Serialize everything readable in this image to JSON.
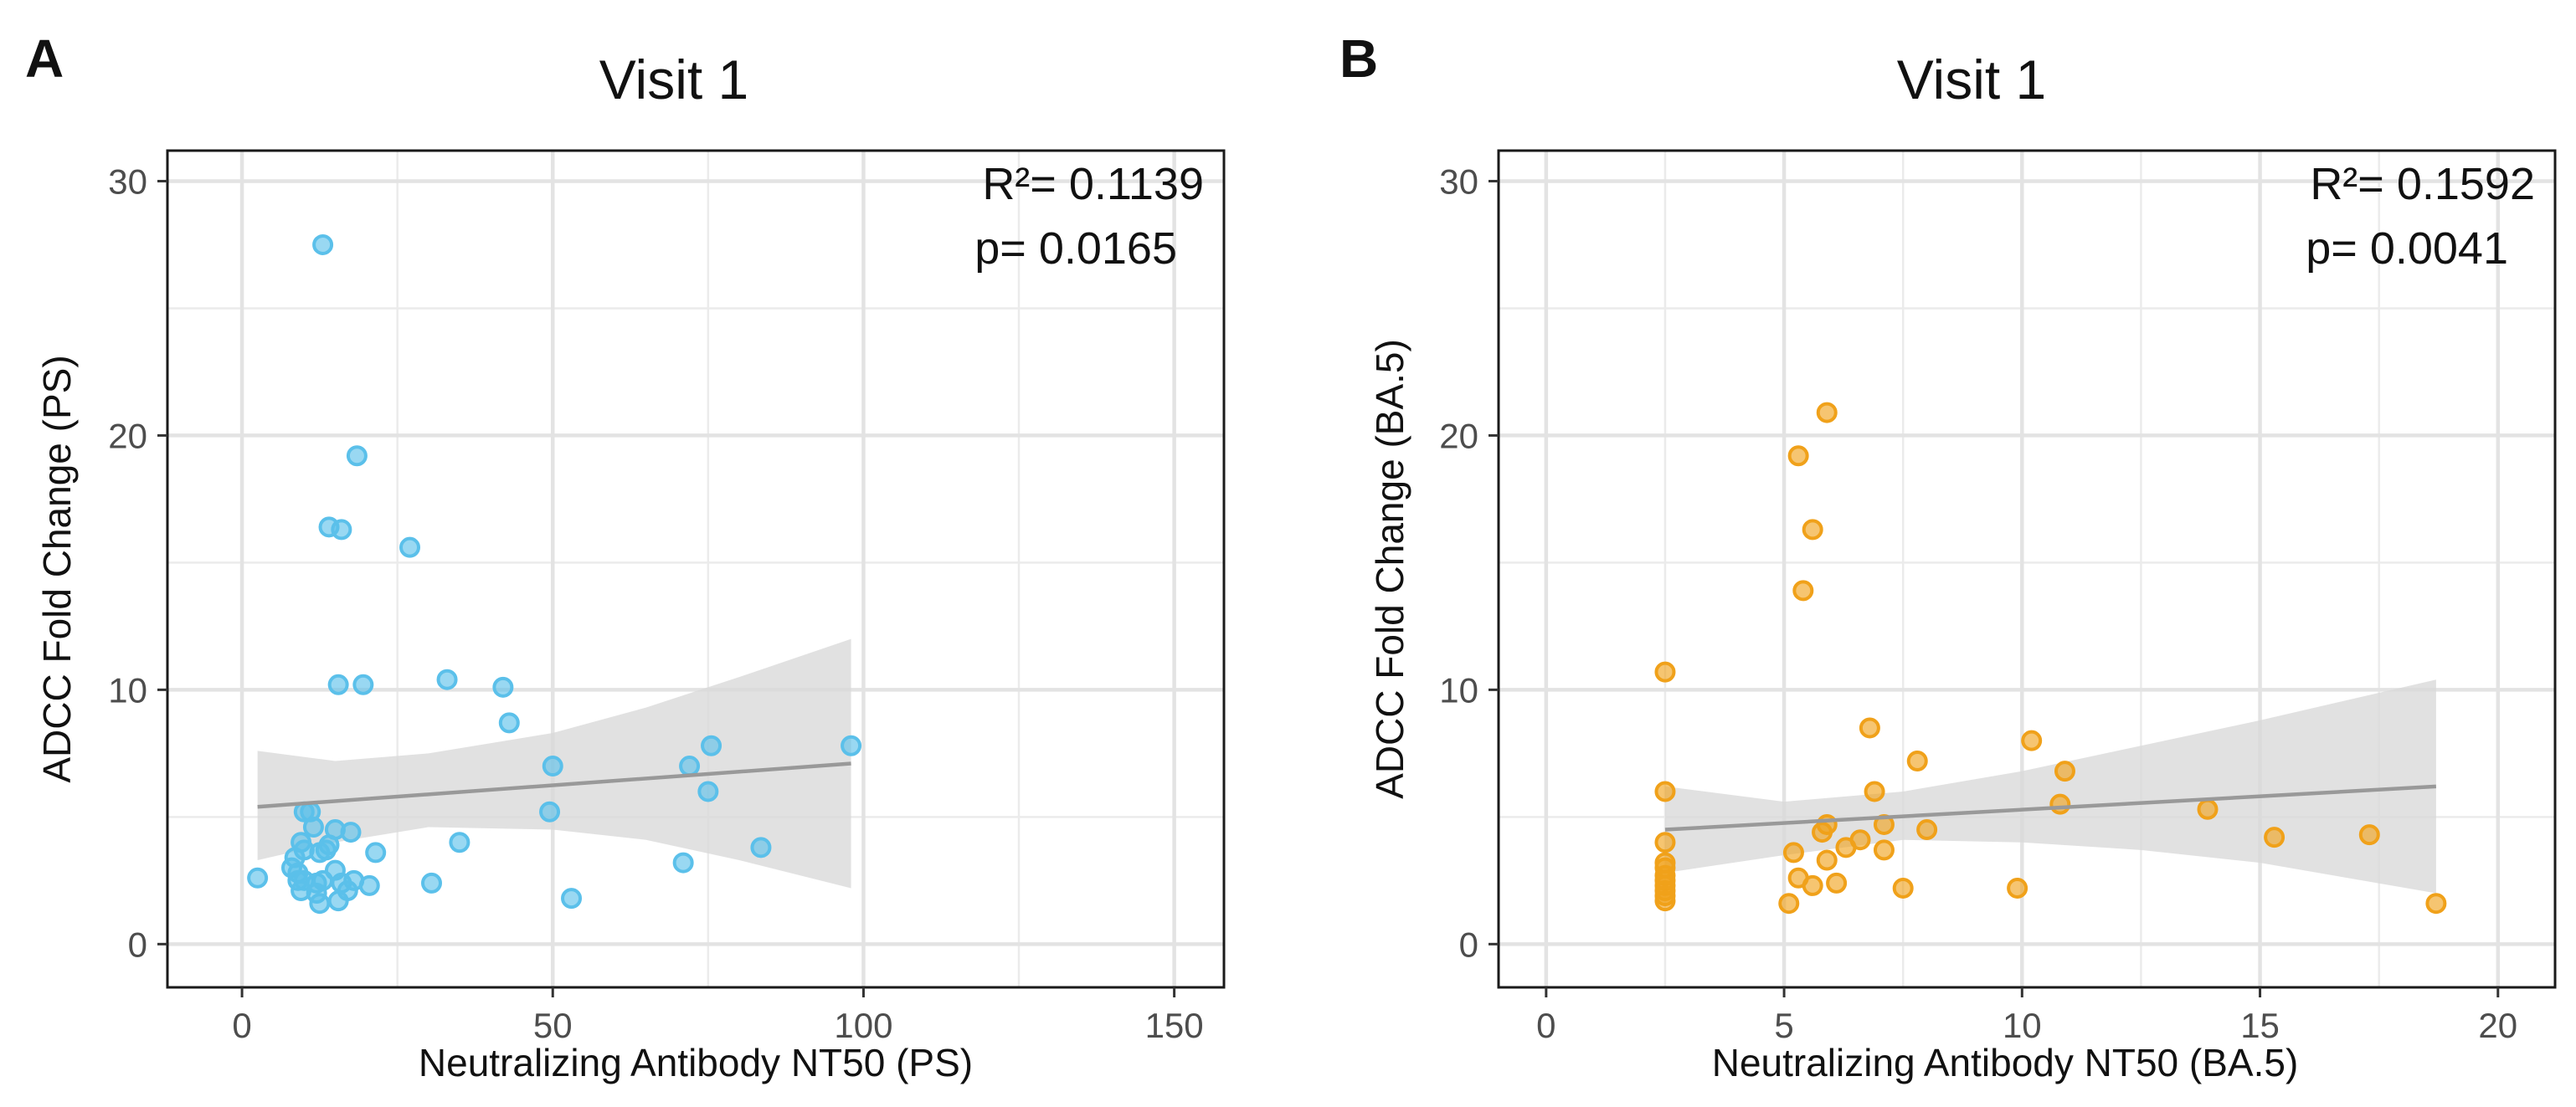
{
  "chart_data": [
    {
      "panel": "A",
      "type": "scatter",
      "title": "Visit 1",
      "xlabel": "Neutralizing Antibody NT50 (PS)",
      "ylabel": "ADCC Fold Change (PS)",
      "xlim": [
        -12,
        158
      ],
      "ylim": [
        -1.7,
        31.2
      ],
      "xticks": [
        0,
        50,
        100,
        150
      ],
      "yticks": [
        0,
        10,
        20,
        30
      ],
      "grid": true,
      "color": "#5bc0ea",
      "annotation": {
        "r2": "R²= 0.1139",
        "p": "p= 0.0165"
      },
      "fit": {
        "x": [
          2.5,
          98
        ],
        "y": [
          5.4,
          7.1
        ]
      },
      "ci": {
        "x": [
          2.5,
          15,
          30,
          50,
          65,
          80,
          98
        ],
        "upper": [
          7.6,
          7.2,
          7.5,
          8.3,
          9.3,
          10.5,
          12.0
        ],
        "lower": [
          3.3,
          4.0,
          4.6,
          4.5,
          4.1,
          3.3,
          2.2
        ]
      },
      "points": [
        [
          13,
          27.5
        ],
        [
          18.5,
          19.2
        ],
        [
          14,
          16.4
        ],
        [
          16,
          16.3
        ],
        [
          27,
          15.6
        ],
        [
          33,
          10.4
        ],
        [
          42,
          10.1
        ],
        [
          43,
          8.7
        ],
        [
          15.5,
          10.2
        ],
        [
          19.5,
          10.2
        ],
        [
          50,
          7.0
        ],
        [
          49.5,
          5.2
        ],
        [
          72,
          7.0
        ],
        [
          75.5,
          7.8
        ],
        [
          75,
          6.0
        ],
        [
          98,
          7.8
        ],
        [
          83.5,
          3.8
        ],
        [
          71,
          3.2
        ],
        [
          35,
          4.0
        ],
        [
          30.5,
          2.4
        ],
        [
          53,
          1.8
        ],
        [
          11,
          5.2
        ],
        [
          10,
          5.2
        ],
        [
          11.5,
          4.6
        ],
        [
          15,
          4.5
        ],
        [
          17.5,
          4.4
        ],
        [
          14,
          3.9
        ],
        [
          13.5,
          3.7
        ],
        [
          12.5,
          3.6
        ],
        [
          9.5,
          4.0
        ],
        [
          10,
          3.7
        ],
        [
          21.5,
          3.6
        ],
        [
          8.5,
          3.4
        ],
        [
          8,
          3.0
        ],
        [
          9,
          2.8
        ],
        [
          15,
          2.9
        ],
        [
          9,
          2.5
        ],
        [
          10,
          2.5
        ],
        [
          12,
          2.4
        ],
        [
          13,
          2.5
        ],
        [
          16,
          2.4
        ],
        [
          18,
          2.5
        ],
        [
          20.5,
          2.3
        ],
        [
          9.5,
          2.1
        ],
        [
          12,
          2.0
        ],
        [
          17,
          2.1
        ],
        [
          12.5,
          1.6
        ],
        [
          15.5,
          1.7
        ],
        [
          2.5,
          2.6
        ]
      ]
    },
    {
      "panel": "B",
      "type": "scatter",
      "title": "Visit 1",
      "xlabel": "Neutralizing Antibody NT50 (BA.5)",
      "ylabel": "ADCC Fold Change (BA.5)",
      "xlim": [
        -1.0,
        21.2
      ],
      "ylim": [
        -1.7,
        31.2
      ],
      "xticks": [
        0,
        5,
        10,
        15,
        20
      ],
      "yticks": [
        0,
        10,
        20,
        30
      ],
      "grid": true,
      "color": "#f0a11a",
      "annotation": {
        "r2": "R²= 0.1592",
        "p": "p= 0.0041"
      },
      "fit": {
        "x": [
          2.5,
          18.7
        ],
        "y": [
          4.5,
          6.2
        ]
      },
      "ci": {
        "x": [
          2.5,
          5,
          7.5,
          10,
          12.5,
          15,
          18.7
        ],
        "upper": [
          6.2,
          5.6,
          6.0,
          6.8,
          7.8,
          8.8,
          10.4
        ],
        "lower": [
          2.8,
          3.5,
          4.1,
          4.0,
          3.7,
          3.2,
          2.0
        ]
      },
      "points": [
        [
          5.9,
          20.9
        ],
        [
          5.3,
          19.2
        ],
        [
          5.6,
          16.3
        ],
        [
          5.4,
          13.9
        ],
        [
          2.5,
          10.7
        ],
        [
          6.8,
          8.5
        ],
        [
          10.2,
          8.0
        ],
        [
          7.8,
          7.2
        ],
        [
          10.9,
          6.8
        ],
        [
          2.5,
          6.0
        ],
        [
          6.9,
          6.0
        ],
        [
          10.8,
          5.5
        ],
        [
          13.9,
          5.3
        ],
        [
          5.9,
          4.7
        ],
        [
          5.8,
          4.4
        ],
        [
          7.1,
          4.7
        ],
        [
          8.0,
          4.5
        ],
        [
          6.6,
          4.1
        ],
        [
          6.3,
          3.8
        ],
        [
          7.1,
          3.7
        ],
        [
          5.2,
          3.6
        ],
        [
          5.9,
          3.3
        ],
        [
          15.3,
          4.2
        ],
        [
          17.3,
          4.3
        ],
        [
          2.5,
          4.0
        ],
        [
          2.5,
          3.2
        ],
        [
          2.5,
          3.0
        ],
        [
          2.5,
          2.7
        ],
        [
          2.5,
          2.5
        ],
        [
          2.5,
          2.3
        ],
        [
          2.5,
          2.1
        ],
        [
          2.5,
          1.9
        ],
        [
          2.5,
          1.7
        ],
        [
          5.3,
          2.6
        ],
        [
          5.6,
          2.3
        ],
        [
          6.1,
          2.4
        ],
        [
          7.5,
          2.2
        ],
        [
          9.9,
          2.2
        ],
        [
          5.1,
          1.6
        ],
        [
          18.7,
          1.6
        ]
      ]
    }
  ]
}
